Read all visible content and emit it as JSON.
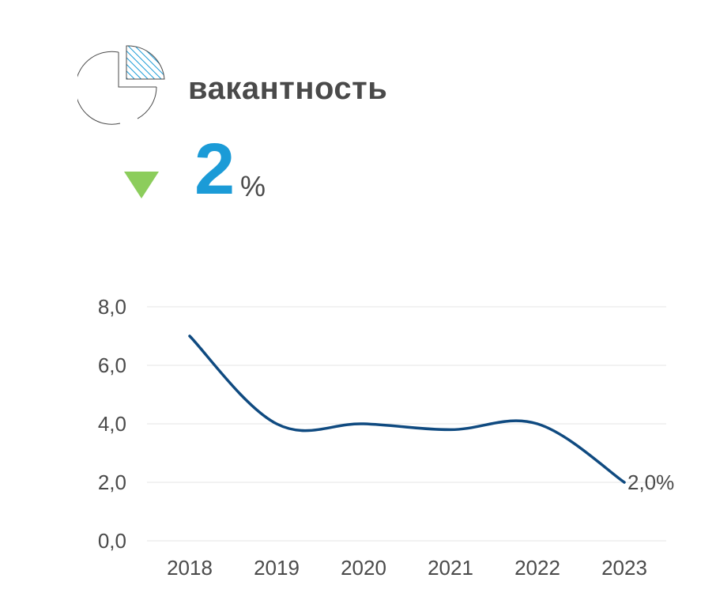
{
  "header": {
    "title": "вакантность",
    "icon": "pie-chart-icon",
    "trend_icon": "triangle-down-icon",
    "value": "2",
    "unit": "%"
  },
  "colors": {
    "line": "#0f4a80",
    "accent": "#1b9bd7",
    "trend": "#8ccd5c",
    "text": "#4a4a4a",
    "grid": "#e4e4e4"
  },
  "chart_data": {
    "type": "line",
    "categories": [
      "2018",
      "2019",
      "2020",
      "2021",
      "2022",
      "2023"
    ],
    "series": [
      {
        "values": [
          7.0,
          4.0,
          4.0,
          3.8,
          4.0,
          2.0
        ]
      }
    ],
    "ylim": [
      0,
      8
    ],
    "yticks": [
      "0,0",
      "2,0",
      "4,0",
      "6,0",
      "8,0"
    ],
    "grid": true,
    "last_label": "2,0%",
    "title": "",
    "xlabel": "",
    "ylabel": ""
  }
}
